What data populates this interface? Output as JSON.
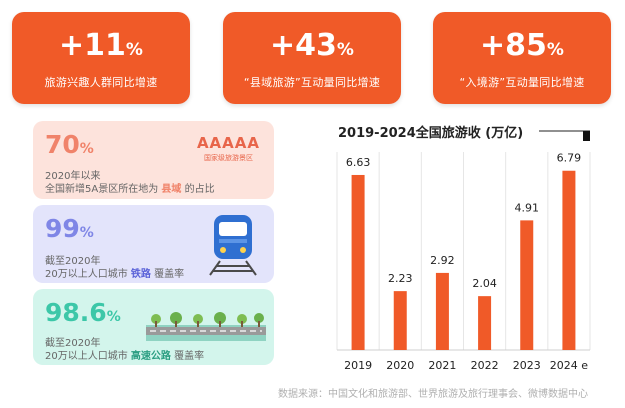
{
  "top_stats": [
    {
      "value": "+11",
      "unit": "%",
      "label": "旅游兴趣人群同比增速"
    },
    {
      "value": "+43",
      "unit": "%",
      "label": "“县域旅游”互动量同比增速"
    },
    {
      "value": "+85",
      "unit": "%",
      "label": "“入境游”互动量同比增速"
    }
  ],
  "cards": {
    "county": {
      "value": "70",
      "unit": "%",
      "line1": "2020年以来",
      "line2_pre": "全国新增5A景区所在地为 ",
      "line2_hl": "县域",
      "line2_post": " 的占比",
      "badge_title": "AAAAA",
      "badge_sub": "国家级旅游景区"
    },
    "rail": {
      "value": "99",
      "unit": "%",
      "line1": "截至2020年",
      "line2_pre": "20万以上人口城市 ",
      "line2_hl": "铁路",
      "line2_post": " 覆盖率"
    },
    "highway": {
      "value": "98.6",
      "unit": "%",
      "line1": "截至2020年",
      "line2_pre": "20万以上人口城市 ",
      "line2_hl": "高速公路",
      "line2_post": " 覆盖率"
    }
  },
  "chart_data": {
    "type": "bar",
    "title": "2019-2024全国旅游收 (万亿)",
    "categories": [
      "2019",
      "2020",
      "2021",
      "2022",
      "2023",
      "2024 e"
    ],
    "values": [
      6.63,
      2.23,
      2.92,
      2.04,
      4.91,
      6.79
    ],
    "value_labels": [
      "6.63",
      "2.23",
      "2.92",
      "2.04",
      "4.91",
      "6.79"
    ],
    "ylim": [
      0,
      7.5
    ],
    "bar_color": "#f05a28",
    "grid": true
  },
  "source": "数据来源：中国文化和旅游部、世界旅游及旅行理事会、微博数据中心",
  "colors": {
    "accent": "#f05a28",
    "county_bg": "#fde3dc",
    "county_text": "#f0836a",
    "rail_bg": "#e3e4fb",
    "rail_text": "#7f86e6",
    "highway_bg": "#d3f5ec",
    "highway_text": "#3cc7a8"
  }
}
